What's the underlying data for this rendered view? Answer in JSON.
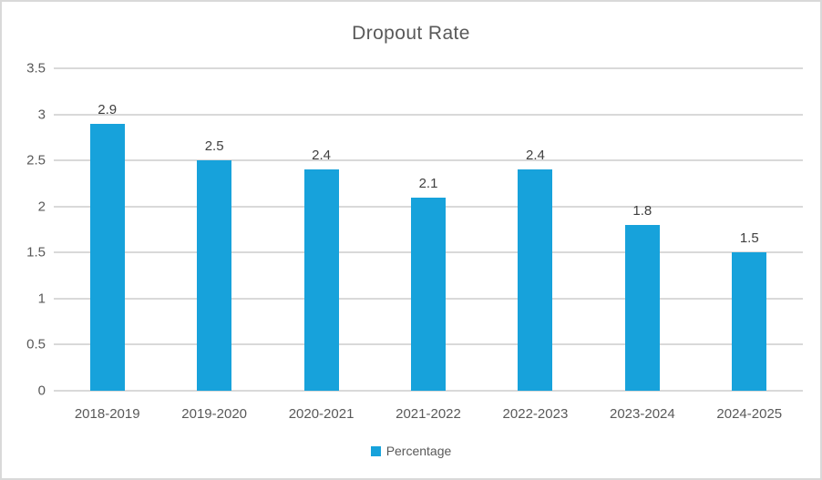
{
  "chart_data": {
    "type": "bar",
    "title": "Dropout Rate",
    "categories": [
      "2018-2019",
      "2019-2020",
      "2020-2021",
      "2021-2022",
      "2022-2023",
      "2023-2024",
      "2024-2025"
    ],
    "series": [
      {
        "name": "Percentage",
        "values": [
          2.9,
          2.5,
          2.4,
          2.1,
          2.4,
          1.8,
          1.5
        ]
      }
    ],
    "data_labels": [
      "2.9",
      "2.5",
      "2.4",
      "2.1",
      "2.4",
      "1.8",
      "1.5"
    ],
    "xlabel": "",
    "ylabel": "",
    "ylim": [
      0,
      3.5
    ],
    "yticks": [
      0,
      0.5,
      1,
      1.5,
      2,
      2.5,
      3,
      3.5
    ],
    "ytick_labels": [
      "0",
      "0.5",
      "1",
      "1.5",
      "2",
      "2.5",
      "3",
      "3.5"
    ],
    "grid": "horizontal",
    "legend_position": "bottom",
    "colors": {
      "bar": "#17A2DB",
      "gridline": "#D9D9D9",
      "axis_text": "#595959",
      "data_label": "#404040",
      "title_text": "#595959",
      "chart_border": "#D9D9D9",
      "background": "#FFFFFF"
    }
  }
}
